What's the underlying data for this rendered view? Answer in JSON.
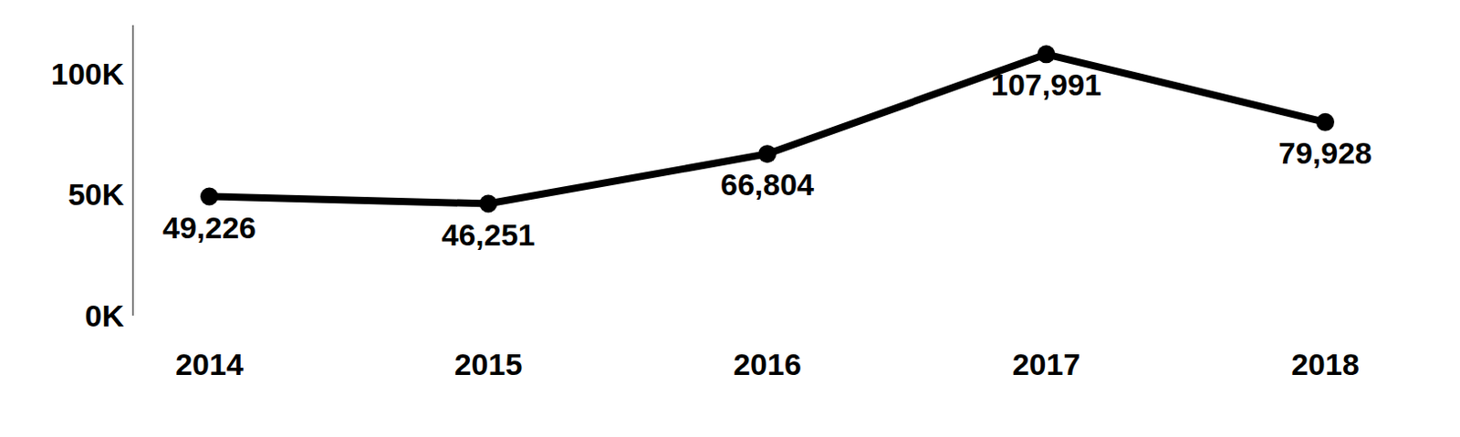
{
  "chart_data": {
    "type": "line",
    "categories": [
      "2014",
      "2015",
      "2016",
      "2017",
      "2018"
    ],
    "values": [
      49226,
      46251,
      66804,
      107991,
      79928
    ],
    "value_labels": [
      "49,226",
      "46,251",
      "66,804",
      "107,991",
      "79,928"
    ],
    "color": "#000000",
    "marker": "circle",
    "ylim": [
      0,
      120000
    ],
    "yticks": [
      {
        "value": 0,
        "label": "0K"
      },
      {
        "value": 50000,
        "label": "50K"
      },
      {
        "value": 100000,
        "label": "100K"
      }
    ],
    "grid": false,
    "data_labels": true
  }
}
